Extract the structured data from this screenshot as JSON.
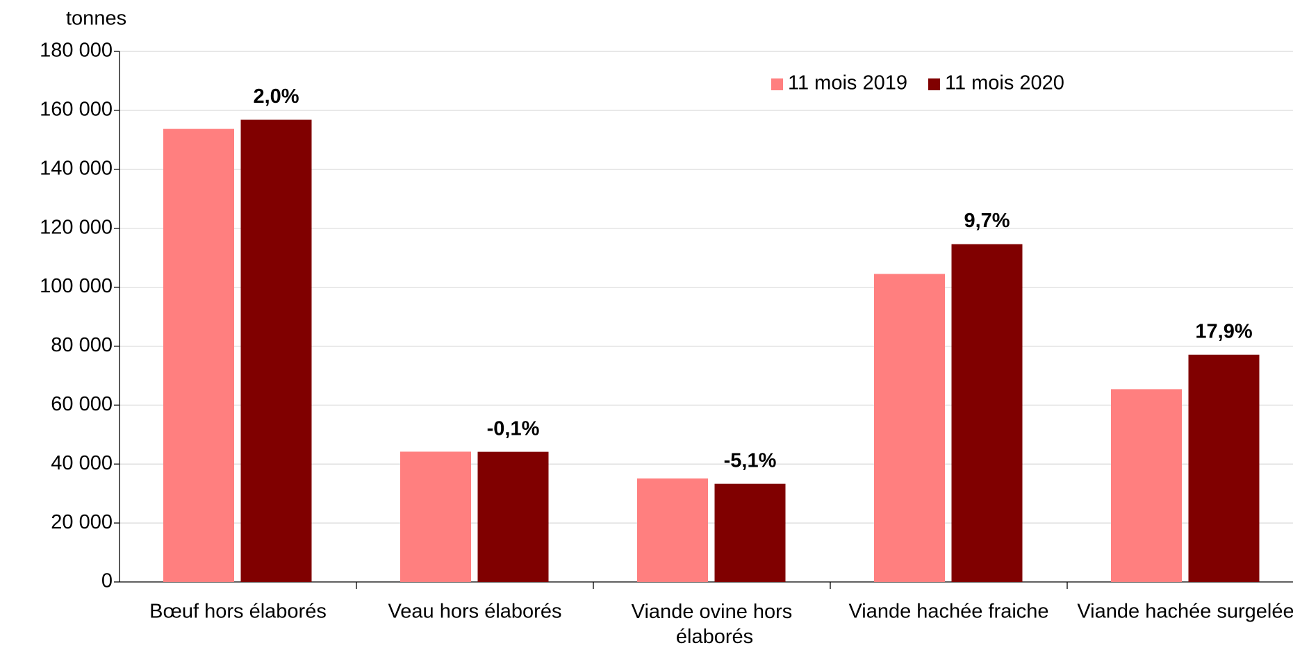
{
  "chart_data": {
    "type": "bar",
    "y_axis_label": "tonnes",
    "categories": [
      "Bœuf hors élaborés",
      "Veau hors élaborés",
      "Viande ovine hors élaborés",
      "Viande hachée fraiche",
      "Viande hachée surgelée"
    ],
    "series": [
      {
        "name": "11 mois 2019",
        "color": "#ff7f7f",
        "values": [
          153700,
          44200,
          35100,
          104500,
          65400
        ]
      },
      {
        "name": "11 mois 2020",
        "color": "#800000",
        "values": [
          156800,
          44150,
          33300,
          114600,
          77100
        ]
      }
    ],
    "annotations": [
      "2,0%",
      "-0,1%",
      "-5,1%",
      "9,7%",
      "17,9%"
    ],
    "ylim": [
      0,
      180000
    ],
    "yticks": [
      0,
      {
        "value": 20000,
        "label": "20 000"
      },
      {
        "value": 40000,
        "label": "40 000"
      },
      {
        "value": 60000,
        "label": "60 000"
      },
      {
        "value": 80000,
        "label": "80 000"
      },
      {
        "value": 100000,
        "label": "100 000"
      },
      {
        "value": 120000,
        "label": "120 000"
      },
      {
        "value": 140000,
        "label": "140 000"
      },
      {
        "value": 160000,
        "label": "160 000"
      },
      {
        "value": 180000,
        "label": "180 000"
      }
    ],
    "grid": true,
    "legend": "top-right"
  }
}
